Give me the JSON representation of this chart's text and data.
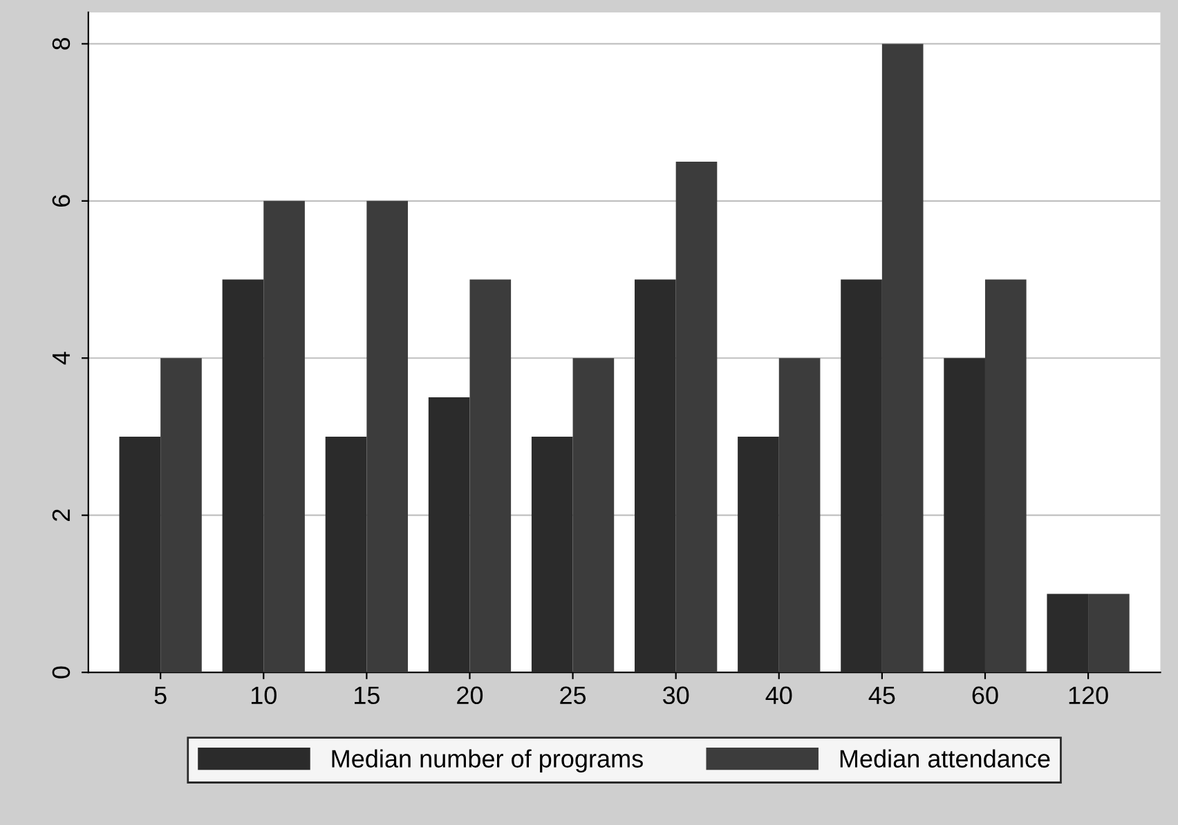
{
  "chart_data": {
    "type": "bar",
    "categories": [
      "5",
      "10",
      "15",
      "20",
      "25",
      "30",
      "40",
      "45",
      "60",
      "120"
    ],
    "series": [
      {
        "name": "Median number of programs",
        "color": "#2b2b2b",
        "values": [
          3,
          5,
          3,
          3.5,
          3,
          5,
          3,
          5,
          4,
          1
        ]
      },
      {
        "name": "Median attendance",
        "color": "#3c3c3c",
        "values": [
          4,
          6,
          6,
          5,
          4,
          6.5,
          4,
          8,
          5,
          1
        ]
      }
    ],
    "ylim": [
      0,
      8.4
    ],
    "yticks": [
      0,
      2,
      4,
      6,
      8
    ],
    "grid": "y",
    "legend": "bottom"
  }
}
